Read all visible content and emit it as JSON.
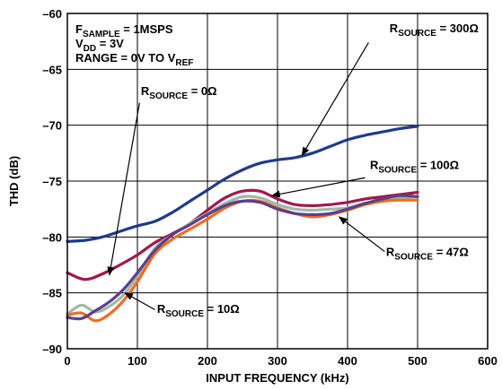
{
  "chart_data": {
    "type": "line",
    "title": "",
    "xlabel": "INPUT FREQUENCY (kHz)",
    "ylabel": "THD (dB)",
    "xlim": [
      0,
      600
    ],
    "ylim": [
      -90,
      -60
    ],
    "xticks": [
      "0",
      "100",
      "200",
      "300",
      "400",
      "500",
      "600"
    ],
    "yticks": [
      "–60",
      "–65",
      "–70",
      "–75",
      "–80",
      "–85",
      "–90"
    ],
    "grid": true,
    "conditions": [
      {
        "main": "F",
        "sub": "SAMPLE",
        "rest": " = 1MSPS"
      },
      {
        "main": "V",
        "sub": "DD",
        "rest": " = 3V"
      },
      {
        "main": "RANGE = 0V TO V",
        "sub": "REF",
        "rest": ""
      }
    ],
    "series": [
      {
        "name": "300Ω",
        "color": "#1f3a8a",
        "x": [
          0,
          25,
          50,
          75,
          100,
          125,
          150,
          175,
          200,
          225,
          250,
          275,
          300,
          325,
          350,
          375,
          400,
          425,
          450,
          475,
          500
        ],
        "y": [
          -80.4,
          -80.3,
          -80.0,
          -79.5,
          -79.0,
          -78.6,
          -77.8,
          -76.8,
          -75.8,
          -74.8,
          -74.0,
          -73.4,
          -73.1,
          -72.9,
          -72.5,
          -71.9,
          -71.3,
          -70.9,
          -70.6,
          -70.3,
          -70.1
        ]
      },
      {
        "name": "0Ω",
        "color": "#a3174c",
        "x": [
          0,
          25,
          50,
          75,
          100,
          125,
          150,
          175,
          200,
          225,
          250,
          275,
          300,
          325,
          350,
          375,
          400,
          425,
          450,
          475,
          500
        ],
        "y": [
          -83.2,
          -83.8,
          -83.3,
          -82.5,
          -81.6,
          -80.5,
          -79.7,
          -78.8,
          -77.6,
          -76.5,
          -75.9,
          -75.9,
          -76.6,
          -77.1,
          -77.2,
          -77.1,
          -76.9,
          -76.6,
          -76.4,
          -76.2,
          -76.0
        ]
      },
      {
        "name": "100Ω",
        "color": "#9fb9a8",
        "x": [
          0,
          20,
          40,
          60,
          80,
          100,
          125,
          150,
          175,
          200,
          225,
          250,
          275,
          300,
          325,
          350,
          375,
          400,
          425,
          450,
          475,
          500
        ],
        "y": [
          -86.9,
          -86.1,
          -86.7,
          -86.2,
          -85.2,
          -83.5,
          -81.0,
          -79.8,
          -78.8,
          -77.9,
          -77.0,
          -76.4,
          -76.5,
          -77.1,
          -77.5,
          -77.6,
          -77.5,
          -77.4,
          -77.0,
          -76.7,
          -76.5,
          -76.4
        ]
      },
      {
        "name": "47Ω",
        "color": "#f26b21",
        "x": [
          0,
          20,
          40,
          60,
          80,
          100,
          125,
          150,
          175,
          200,
          225,
          250,
          275,
          300,
          325,
          350,
          375,
          400,
          425,
          450,
          475,
          500
        ],
        "y": [
          -87.0,
          -86.8,
          -87.5,
          -86.9,
          -85.7,
          -84.0,
          -81.5,
          -80.2,
          -79.3,
          -78.4,
          -77.4,
          -76.8,
          -76.8,
          -77.4,
          -77.9,
          -78.2,
          -78.0,
          -77.6,
          -77.1,
          -76.8,
          -76.7,
          -76.7
        ]
      },
      {
        "name": "10Ω",
        "color": "#5b3f8c",
        "x": [
          0,
          20,
          40,
          60,
          80,
          100,
          125,
          150,
          175,
          200,
          225,
          250,
          275,
          300,
          325,
          350,
          375,
          400,
          425,
          450,
          475,
          500
        ],
        "y": [
          -87.2,
          -87.3,
          -86.6,
          -85.8,
          -84.7,
          -83.2,
          -81.2,
          -79.8,
          -78.9,
          -78.0,
          -77.2,
          -76.8,
          -76.9,
          -77.5,
          -77.9,
          -78.0,
          -77.9,
          -77.5,
          -77.0,
          -76.6,
          -76.3,
          -76.4
        ]
      }
    ],
    "annotations": [
      {
        "main": "R",
        "sub": "SOURCE",
        "rest": " = 300Ω",
        "x": 460,
        "y": -61.7,
        "anchor": "start",
        "arrow_from": [
          430,
          -62.6
        ],
        "arrow_to": [
          335,
          -72.7
        ]
      },
      {
        "main": "R",
        "sub": "SOURCE",
        "rest": " = 0Ω",
        "x": 105,
        "y": -67.3,
        "anchor": "start",
        "arrow_from": [
          103,
          -68.0
        ],
        "arrow_to": [
          60,
          -83.4
        ]
      },
      {
        "main": "R",
        "sub": "SOURCE",
        "rest": " = 100Ω",
        "x": 432,
        "y": -73.9,
        "anchor": "start",
        "arrow_from": [
          425,
          -74.7
        ],
        "arrow_to": [
          292,
          -76.3
        ]
      },
      {
        "main": "R",
        "sub": "SOURCE",
        "rest": " = 47Ω",
        "x": 455,
        "y": -81.7,
        "anchor": "start",
        "arrow_from": [
          453,
          -81.3
        ],
        "arrow_to": [
          388,
          -78.2
        ]
      },
      {
        "main": "R",
        "sub": "SOURCE",
        "rest": " = 10Ω",
        "x": 128,
        "y": -86.8,
        "anchor": "start",
        "arrow_from": [
          125,
          -86.5
        ],
        "arrow_to": [
          82,
          -85.0
        ]
      }
    ]
  }
}
